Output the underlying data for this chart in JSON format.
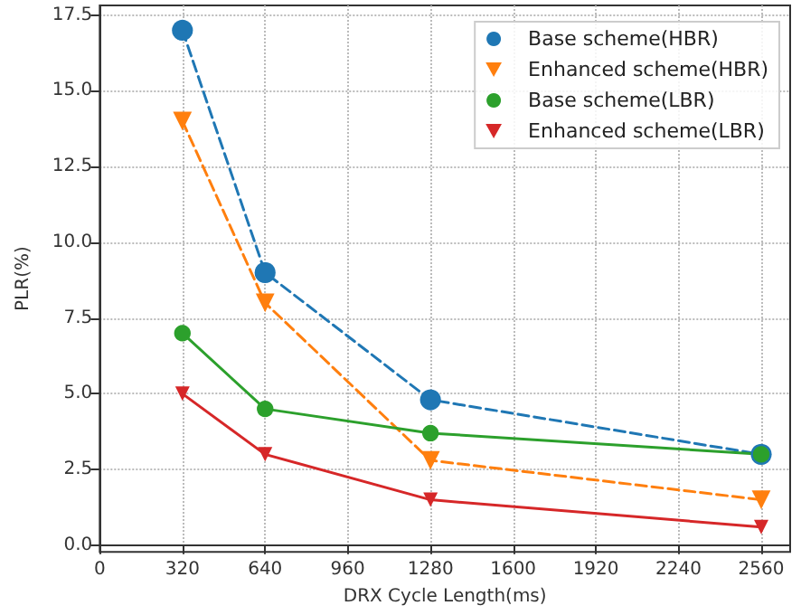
{
  "chart_data": {
    "type": "line",
    "xlabel": "DRX Cycle Length(ms)",
    "ylabel": "PLR(%)",
    "x": [
      320,
      640,
      1280,
      2560
    ],
    "series": [
      {
        "name": "Base scheme(HBR)",
        "color": "#1f77b4",
        "values": [
          17,
          9,
          4.8,
          3
        ],
        "marker": "circle",
        "line_style": "dashed"
      },
      {
        "name": "Enhanced scheme(HBR)",
        "color": "#ff7f0e",
        "values": [
          14,
          8,
          2.8,
          1.5
        ],
        "marker": "triangle",
        "line_style": "dashed"
      },
      {
        "name": "Base scheme(LBR)",
        "color": "#2ca02c",
        "values": [
          7,
          4.5,
          3.7,
          3
        ],
        "marker": "circle",
        "line_style": "solid"
      },
      {
        "name": "Enhanced scheme(LBR)",
        "color": "#d62728",
        "values": [
          5,
          3,
          1.5,
          0.6
        ],
        "marker": "triangle",
        "line_style": "solid"
      }
    ],
    "xlim": [
      0,
      2672
    ],
    "xticks": [
      0,
      320,
      640,
      960,
      1280,
      1600,
      1920,
      2240,
      2560
    ],
    "ylim": [
      -0.22,
      17.82
    ],
    "yticks": [
      {
        "value": 0,
        "label": "0.0"
      },
      {
        "value": 2.5,
        "label": "2.5"
      },
      {
        "value": 5,
        "label": "5.0"
      },
      {
        "value": 7.5,
        "label": "7.5"
      },
      {
        "value": 10,
        "label": "10.0"
      },
      {
        "value": 12.5,
        "label": "12.5"
      },
      {
        "value": 15,
        "label": "15.0"
      },
      {
        "value": 17.5,
        "label": "17.5"
      }
    ],
    "grid": true,
    "legend": "top right"
  }
}
